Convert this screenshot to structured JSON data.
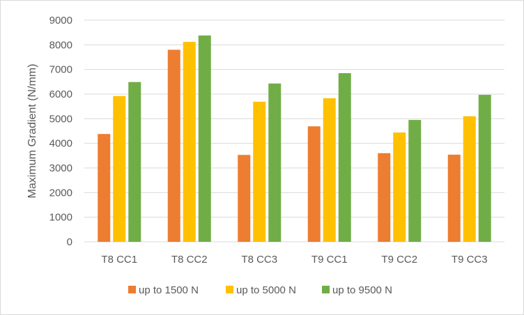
{
  "chart_data": {
    "type": "bar",
    "title": "",
    "xlabel": "",
    "ylabel": "Maximum Gradient (N/mm)",
    "categories": [
      "T8 CC1",
      "T8 CC2",
      "T8 CC3",
      "T9 CC1",
      "T9 CC2",
      "T9 CC3"
    ],
    "series": [
      {
        "name": "up to 1500 N",
        "color": "#ED7D31",
        "values": [
          4380,
          7800,
          3530,
          4690,
          3600,
          3540
        ]
      },
      {
        "name": "up to 5000 N",
        "color": "#FFC000",
        "values": [
          5920,
          8120,
          5690,
          5830,
          4440,
          5100
        ]
      },
      {
        "name": "up to 9500 N",
        "color": "#70AD47",
        "values": [
          6490,
          8380,
          6430,
          6850,
          4950,
          5970
        ]
      }
    ],
    "ylim": [
      0,
      9000
    ],
    "yticks": [
      0,
      1000,
      2000,
      3000,
      4000,
      5000,
      6000,
      7000,
      8000,
      9000
    ],
    "grid": true,
    "legend_position": "bottom",
    "colors": {
      "grid": "#D9D9D9",
      "text": "#595959",
      "border": "#D9D9D9"
    }
  }
}
